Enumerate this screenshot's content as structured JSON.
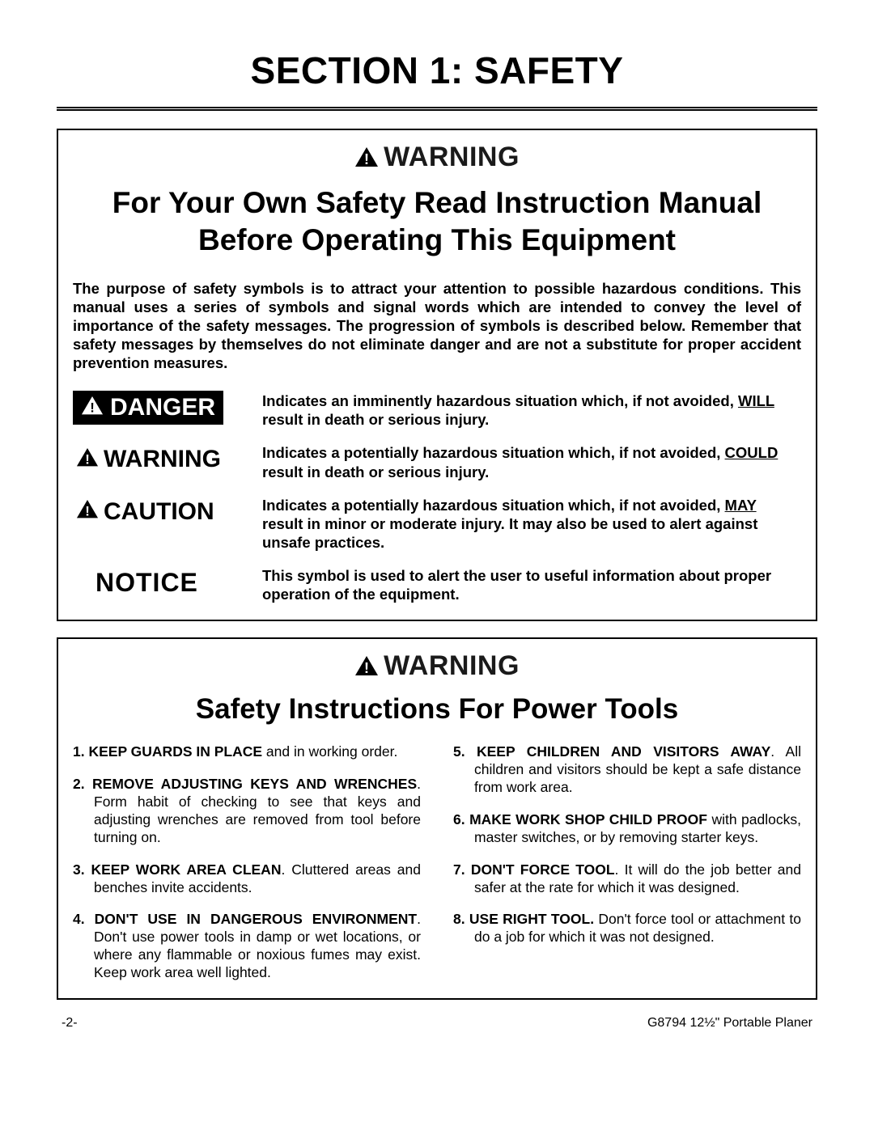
{
  "section_title": "SECTION 1: SAFETY",
  "box1": {
    "warning_label": "WARNING",
    "subhead": "For Your Own Safety Read Instruction Manual Before Operating This Equipment",
    "intro": "The purpose of safety symbols is to attract your attention to possible hazardous conditions. This manual uses a series of symbols and signal words which are intended to convey the level of importance of the safety messages. The progression of symbols is described below. Remember that safety messages by themselves do not eliminate danger and are not a substitute for proper accident prevention measures.",
    "symbols": [
      {
        "type": "danger",
        "label": "DANGER",
        "desc_pre": "Indicates an imminently hazardous situation which, if not avoided, ",
        "desc_ul": "WILL",
        "desc_post": " result in death or serious injury."
      },
      {
        "type": "warning",
        "label": "WARNING",
        "desc_pre": "Indicates a potentially hazardous situation which, if not avoided, ",
        "desc_ul": "COULD",
        "desc_post": " result in death or serious injury."
      },
      {
        "type": "caution",
        "label": "CAUTION",
        "desc_pre": "Indicates a potentially hazardous situation which, if not avoided, ",
        "desc_ul": "MAY",
        "desc_post": " result in minor or moderate injury. It may also be used to alert against unsafe practices."
      },
      {
        "type": "notice",
        "label": "NOTICE",
        "desc_pre": "This symbol is used to alert the user to useful information about proper operation of the equipment.",
        "desc_ul": "",
        "desc_post": ""
      }
    ]
  },
  "box2": {
    "warning_label": "WARNING",
    "subhead": "Safety Instructions For Power Tools",
    "rules_left": [
      {
        "num": "1.",
        "lead": "KEEP GUARDS IN PLACE",
        "rest": " and in working order."
      },
      {
        "num": "2.",
        "lead": "REMOVE ADJUSTING KEYS AND WRENCHES",
        "rest": ". Form habit of checking to see that keys and adjusting wrenches are removed from tool before turning on."
      },
      {
        "num": "3.",
        "lead": "KEEP WORK AREA CLEAN",
        "rest": ". Cluttered areas and benches invite accidents."
      },
      {
        "num": "4.",
        "lead": "DON'T USE IN DANGEROUS ENVIRONMENT",
        "rest": ". Don't use power tools in damp or wet locations, or where any flammable or noxious fumes may exist. Keep work area well lighted."
      }
    ],
    "rules_right": [
      {
        "num": "5.",
        "lead": "KEEP CHILDREN AND VISITORS AWAY",
        "rest": ". All children and visitors should be kept a safe distance from work area."
      },
      {
        "num": "6.",
        "lead": "MAKE WORK SHOP CHILD PROOF",
        "rest": " with padlocks, master switches, or by removing starter keys."
      },
      {
        "num": "7.",
        "lead": "DON'T FORCE TOOL",
        "rest": ". It will do the job better and safer at the rate for which it was designed."
      },
      {
        "num": "8.",
        "lead": "USE RIGHT TOOL.",
        "rest": " Don't force tool or attachment to do a job for which it was not designed."
      }
    ]
  },
  "footer": {
    "page": "-2-",
    "product": "G8794 12½\" Portable Planer"
  },
  "colors": {
    "text": "#000000",
    "bg": "#ffffff"
  }
}
